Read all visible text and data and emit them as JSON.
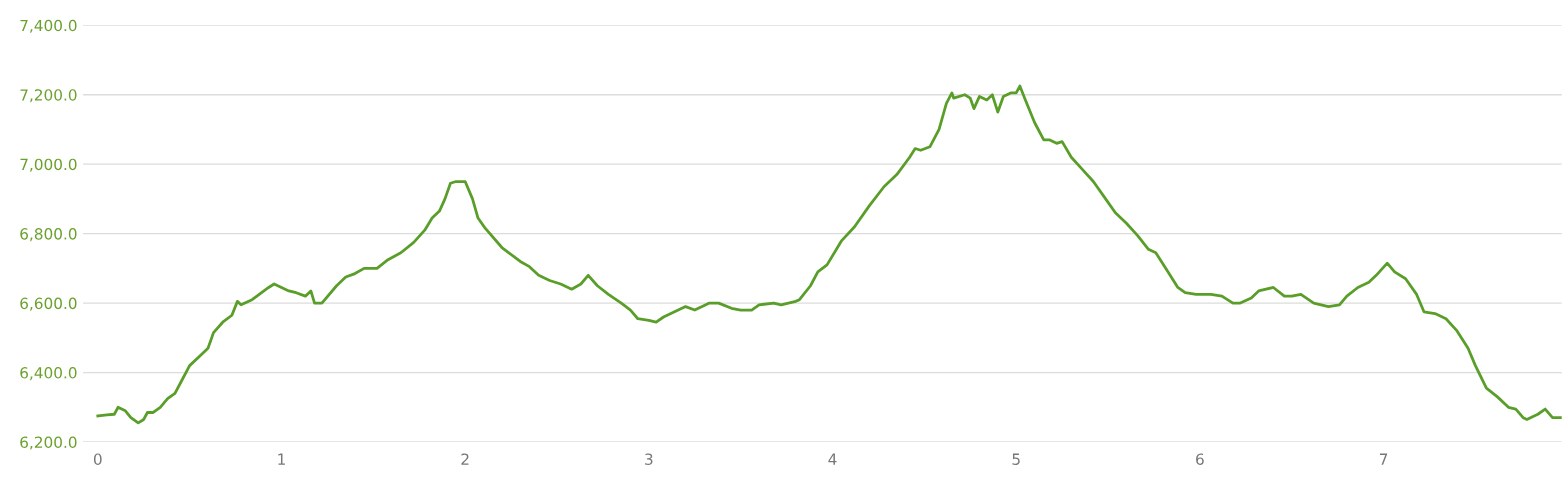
{
  "chart_data": {
    "type": "line",
    "x": [
      0.0,
      0.05,
      0.09,
      0.11,
      0.15,
      0.18,
      0.22,
      0.25,
      0.27,
      0.3,
      0.34,
      0.38,
      0.42,
      0.46,
      0.5,
      0.56,
      0.6,
      0.63,
      0.68,
      0.73,
      0.76,
      0.78,
      0.84,
      0.93,
      0.96,
      1.0,
      1.04,
      1.08,
      1.13,
      1.16,
      1.18,
      1.22,
      1.3,
      1.35,
      1.4,
      1.45,
      1.52,
      1.58,
      1.65,
      1.72,
      1.78,
      1.82,
      1.86,
      1.89,
      1.92,
      1.95,
      2.0,
      2.04,
      2.07,
      2.11,
      2.2,
      2.3,
      2.35,
      2.4,
      2.46,
      2.52,
      2.58,
      2.63,
      2.67,
      2.72,
      2.78,
      2.85,
      2.9,
      2.94,
      3.0,
      3.04,
      3.08,
      3.12,
      3.2,
      3.25,
      3.33,
      3.38,
      3.45,
      3.5,
      3.56,
      3.6,
      3.68,
      3.72,
      3.8,
      3.82,
      3.88,
      3.92,
      3.97,
      4.05,
      4.12,
      4.2,
      4.28,
      4.35,
      4.42,
      4.45,
      4.48,
      4.53,
      4.58,
      4.62,
      4.65,
      4.66,
      4.72,
      4.75,
      4.77,
      4.8,
      4.84,
      4.87,
      4.9,
      4.93,
      4.97,
      5.0,
      5.02,
      5.05,
      5.1,
      5.15,
      5.18,
      5.22,
      5.25,
      5.3,
      5.36,
      5.42,
      5.48,
      5.54,
      5.6,
      5.66,
      5.72,
      5.76,
      5.82,
      5.88,
      5.92,
      5.98,
      6.06,
      6.12,
      6.18,
      6.22,
      6.28,
      6.32,
      6.4,
      6.46,
      6.5,
      6.55,
      6.62,
      6.7,
      6.76,
      6.8,
      6.86,
      6.92,
      6.96,
      7.02,
      7.06,
      7.12,
      7.18,
      7.22,
      7.28,
      7.34,
      7.4,
      7.46,
      7.5,
      7.56,
      7.62,
      7.68,
      7.72,
      7.76,
      7.78,
      7.84,
      7.88,
      7.92,
      7.97
    ],
    "series": [
      {
        "color": "#5a9e2a",
        "values": [
          6275,
          6278,
          6280,
          6300,
          6290,
          6270,
          6255,
          6265,
          6285,
          6285,
          6300,
          6325,
          6340,
          6380,
          6420,
          6450,
          6470,
          6515,
          6545,
          6565,
          6605,
          6595,
          6610,
          6645,
          6655,
          6645,
          6635,
          6630,
          6620,
          6635,
          6600,
          6600,
          6650,
          6675,
          6685,
          6700,
          6700,
          6725,
          6745,
          6775,
          6810,
          6845,
          6865,
          6900,
          6945,
          6950,
          6950,
          6900,
          6845,
          6815,
          6760,
          6720,
          6705,
          6680,
          6665,
          6655,
          6640,
          6655,
          6680,
          6650,
          6625,
          6600,
          6580,
          6555,
          6550,
          6545,
          6560,
          6570,
          6590,
          6580,
          6600,
          6600,
          6585,
          6580,
          6580,
          6595,
          6600,
          6595,
          6605,
          6610,
          6650,
          6690,
          6710,
          6780,
          6820,
          6880,
          6935,
          6970,
          7020,
          7045,
          7040,
          7050,
          7100,
          7175,
          7205,
          7190,
          7200,
          7190,
          7160,
          7195,
          7185,
          7200,
          7150,
          7195,
          7205,
          7205,
          7225,
          7185,
          7120,
          7070,
          7070,
          7060,
          7065,
          7020,
          6985,
          6950,
          6905,
          6860,
          6830,
          6795,
          6755,
          6745,
          6695,
          6645,
          6630,
          6625,
          6625,
          6620,
          6600,
          6600,
          6615,
          6635,
          6645,
          6620,
          6620,
          6625,
          6600,
          6590,
          6595,
          6620,
          6645,
          6660,
          6680,
          6715,
          6690,
          6670,
          6625,
          6575,
          6570,
          6555,
          6520,
          6470,
          6420,
          6355,
          6330,
          6300,
          6295,
          6270,
          6265,
          6280,
          6295,
          6270,
          6270
        ]
      }
    ],
    "xlim": [
      -0.08,
      7.97
    ],
    "xticks": [
      0,
      1,
      2,
      3,
      4,
      5,
      6,
      7
    ],
    "ylim": [
      6200,
      7400
    ],
    "yticks": [
      {
        "value": 6200,
        "label": "6,200.0"
      },
      {
        "value": 6400,
        "label": "6,400.0"
      },
      {
        "value": 6600,
        "label": "6,600.0"
      },
      {
        "value": 6800,
        "label": "6,800.0"
      },
      {
        "value": 7000,
        "label": "7,000.0"
      },
      {
        "value": 7200,
        "label": "7,200.0"
      },
      {
        "value": 7400,
        "label": "7,400.0"
      }
    ],
    "grid": "y",
    "marker": "none",
    "line_style": "solid"
  }
}
